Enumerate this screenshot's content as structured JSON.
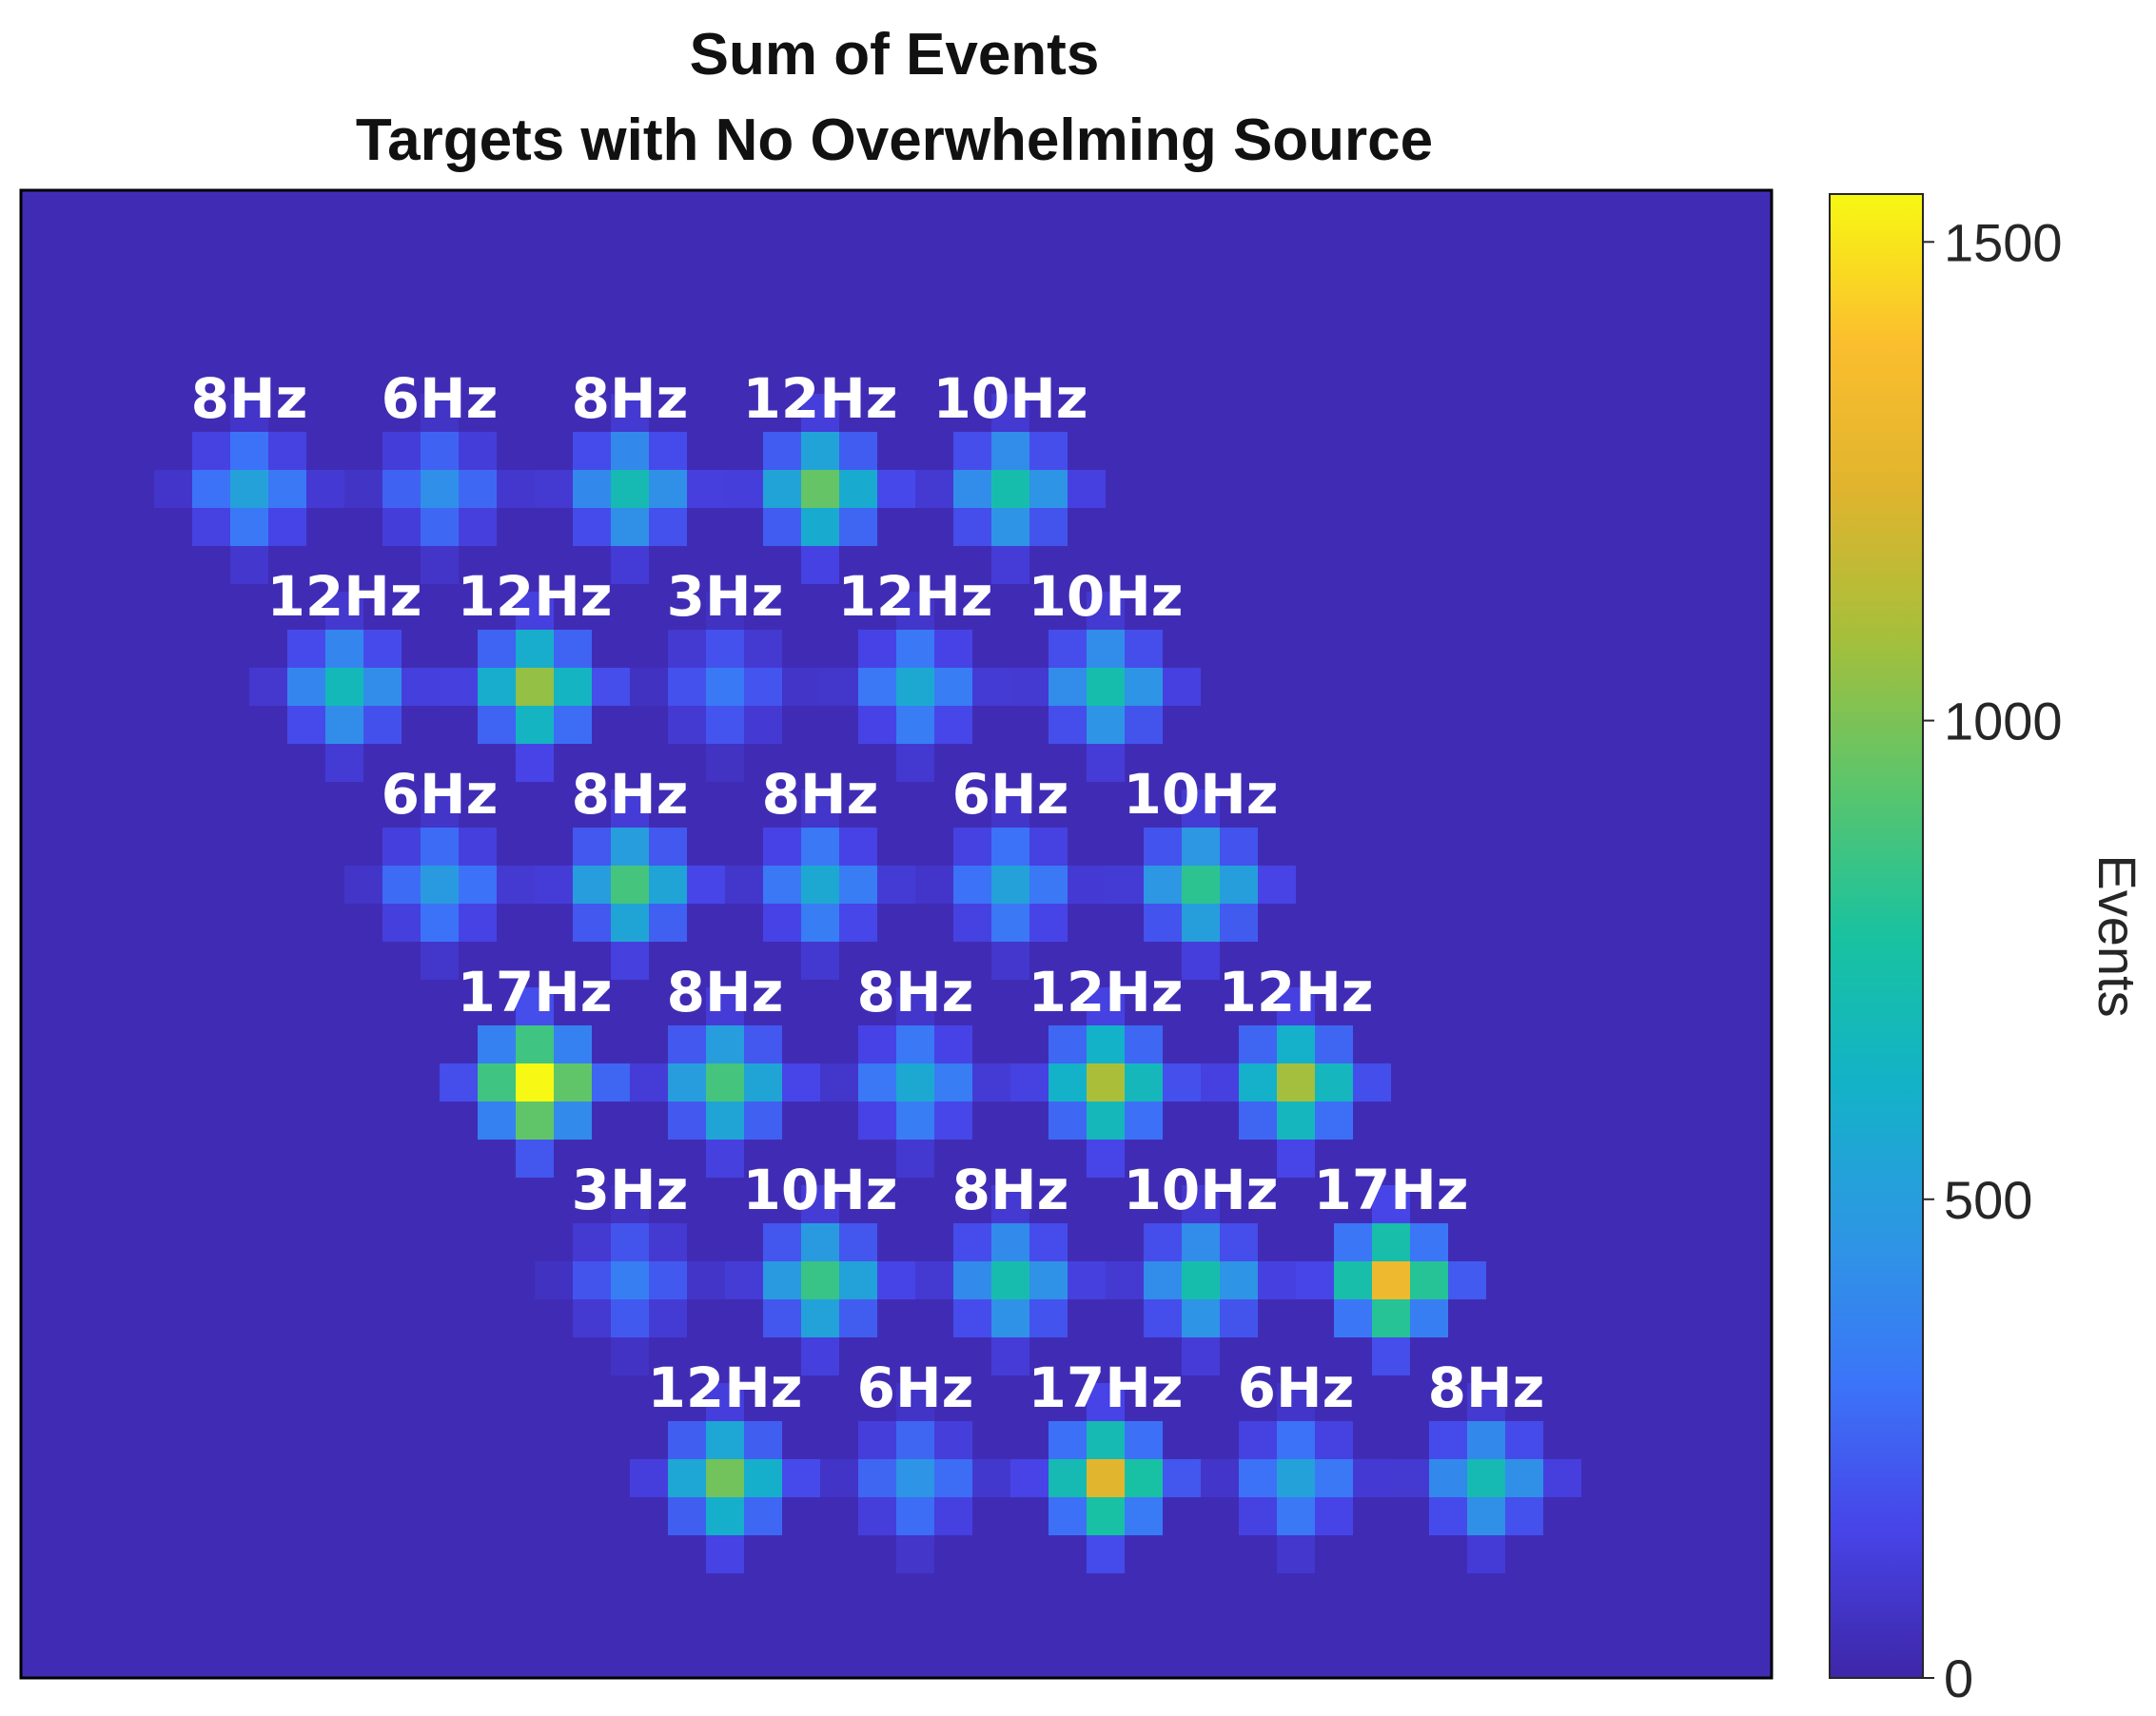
{
  "chart_data": {
    "type": "heatmap",
    "title": "Sum of Events",
    "subtitle": "Targets with No Overwhelming Source",
    "colorbar": {
      "label": "Events",
      "range": [
        0,
        1550
      ],
      "ticks": [
        0,
        500,
        1000,
        1500
      ],
      "colormap": "parula",
      "stops": [
        "#3e26a8",
        "#4744e8",
        "#3b75f8",
        "#2d97e3",
        "#13b2c8",
        "#19c2a0",
        "#5ac56c",
        "#a5bf3b",
        "#e0b42e",
        "#fbbe2e",
        "#f7f813"
      ]
    },
    "background_value": 30,
    "targets": [
      {
        "row": 1,
        "col": 1,
        "label": "8Hz",
        "peak": 520
      },
      {
        "row": 1,
        "col": 2,
        "label": "6Hz",
        "peak": 430
      },
      {
        "row": 1,
        "col": 3,
        "label": "8Hz",
        "peak": 700
      },
      {
        "row": 1,
        "col": 4,
        "label": "12Hz",
        "peak": 950
      },
      {
        "row": 1,
        "col": 5,
        "label": "10Hz",
        "peak": 730
      },
      {
        "row": 2,
        "col": 1,
        "label": "12Hz",
        "peak": 680
      },
      {
        "row": 2,
        "col": 2,
        "label": "12Hz",
        "peak": 1050
      },
      {
        "row": 2,
        "col": 3,
        "label": "3Hz",
        "peak": 330
      },
      {
        "row": 2,
        "col": 4,
        "label": "12Hz",
        "peak": 560
      },
      {
        "row": 2,
        "col": 5,
        "label": "10Hz",
        "peak": 730
      },
      {
        "row": 3,
        "col": 1,
        "label": "6Hz",
        "peak": 480
      },
      {
        "row": 3,
        "col": 2,
        "label": "8Hz",
        "peak": 880
      },
      {
        "row": 3,
        "col": 3,
        "label": "8Hz",
        "peak": 560
      },
      {
        "row": 3,
        "col": 4,
        "label": "6Hz",
        "peak": 520
      },
      {
        "row": 3,
        "col": 5,
        "label": "10Hz",
        "peak": 820
      },
      {
        "row": 4,
        "col": 1,
        "label": "17Hz",
        "peak": 1550
      },
      {
        "row": 4,
        "col": 2,
        "label": "8Hz",
        "peak": 880
      },
      {
        "row": 4,
        "col": 3,
        "label": "8Hz",
        "peak": 560
      },
      {
        "row": 4,
        "col": 4,
        "label": "12Hz",
        "peak": 1100
      },
      {
        "row": 4,
        "col": 5,
        "label": "12Hz",
        "peak": 1080
      },
      {
        "row": 5,
        "col": 1,
        "label": "3Hz",
        "peak": 350
      },
      {
        "row": 5,
        "col": 2,
        "label": "10Hz",
        "peak": 850
      },
      {
        "row": 5,
        "col": 3,
        "label": "8Hz",
        "peak": 720
      },
      {
        "row": 5,
        "col": 4,
        "label": "10Hz",
        "peak": 730
      },
      {
        "row": 5,
        "col": 5,
        "label": "17Hz",
        "peak": 1320
      },
      {
        "row": 6,
        "col": 1,
        "label": "12Hz",
        "peak": 980
      },
      {
        "row": 6,
        "col": 2,
        "label": "6Hz",
        "peak": 450
      },
      {
        "row": 6,
        "col": 3,
        "label": "17Hz",
        "peak": 1250
      },
      {
        "row": 6,
        "col": 4,
        "label": "6Hz",
        "peak": 520
      },
      {
        "row": 6,
        "col": 5,
        "label": "8Hz",
        "peak": 700
      }
    ]
  }
}
